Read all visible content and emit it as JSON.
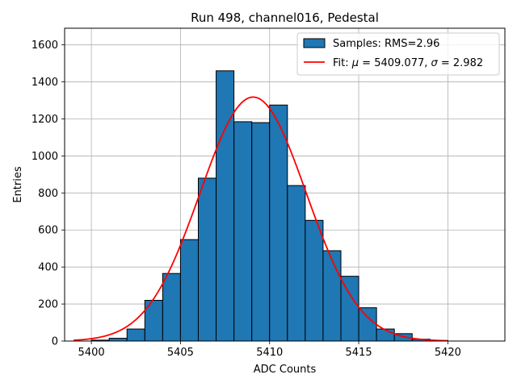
{
  "chart_data": {
    "type": "bar",
    "title": "Run 498, channel016, Pedestal",
    "xlabel": "ADC Counts",
    "ylabel": "Entries",
    "xlim": [
      5398.5,
      5423.2
    ],
    "ylim": [
      0,
      1690
    ],
    "grid": true,
    "legend_position": "top-right",
    "x_ticks": [
      5400,
      5405,
      5410,
      5415,
      5420
    ],
    "y_ticks": [
      0,
      200,
      400,
      600,
      800,
      1000,
      1200,
      1400,
      1600
    ],
    "histogram": {
      "name": "Samples: RMS=2.96",
      "color": "#1f77b4",
      "edge_color": "#000000",
      "bin_width": 1,
      "bin_starts": [
        5400,
        5401,
        5402,
        5403,
        5404,
        5405,
        5406,
        5407,
        5408,
        5409,
        5410,
        5411,
        5412,
        5413,
        5414,
        5415,
        5416,
        5417,
        5418,
        5419
      ],
      "values": [
        5,
        15,
        65,
        220,
        365,
        548,
        880,
        1460,
        1185,
        1180,
        1275,
        840,
        652,
        488,
        350,
        180,
        65,
        40,
        10,
        3
      ]
    },
    "fit": {
      "name": "Fit: μ = 5409.077, σ = 2.982",
      "label_parts": {
        "prefix": "Fit: ",
        "mu_symbol": "μ",
        "mu_value": " = 5409.077, ",
        "sigma_symbol": "σ",
        "sigma_value": " = 2.982"
      },
      "color": "#ff0000",
      "type": "gaussian",
      "mu": 5409.077,
      "sigma": 2.982,
      "amplitude": 1318,
      "x_range": [
        5399,
        5420
      ]
    }
  }
}
